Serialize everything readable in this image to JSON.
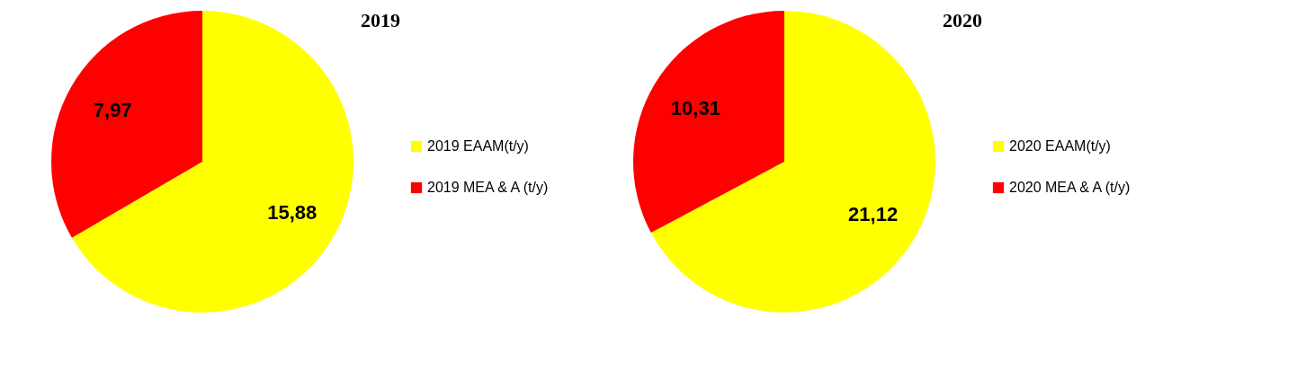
{
  "chart_data": [
    {
      "type": "pie",
      "title": "2019",
      "categories": [
        "2019 EAAM(t/y)",
        "2019 MEA & A (t/y)"
      ],
      "values": [
        15.88,
        7.97
      ],
      "colors": [
        "#ffff00",
        "#ff0000"
      ],
      "value_labels": [
        "15,88",
        "7,97"
      ],
      "legend": "right"
    },
    {
      "type": "pie",
      "title": "2020",
      "categories": [
        "2020 EAAM(t/y)",
        "2020 MEA & A (t/y)"
      ],
      "values": [
        21.12,
        10.31
      ],
      "colors": [
        "#ffff00",
        "#ff0000"
      ],
      "value_labels": [
        "21,12",
        "10,31"
      ],
      "legend": "right"
    }
  ]
}
